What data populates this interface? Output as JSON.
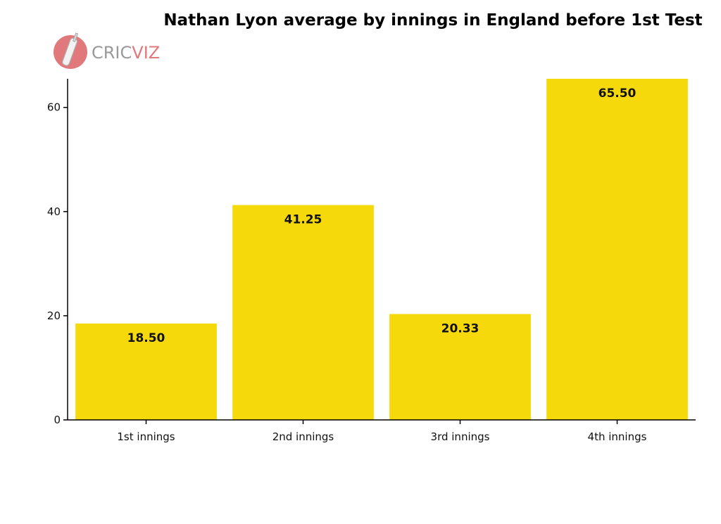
{
  "logo": {
    "text_prefix": "CRIC",
    "text_suffix": "VIZ",
    "color": "#e0787c"
  },
  "colors": {
    "bar": "#f5d90a",
    "axis": "#000000"
  },
  "chart_data": {
    "type": "bar",
    "title": "Nathan Lyon average by innings in England before 1st Test",
    "xlabel": "",
    "ylabel": "",
    "categories": [
      "1st innings",
      "2nd innings",
      "3rd innings",
      "4th innings"
    ],
    "values": [
      18.5,
      41.25,
      20.33,
      65.5
    ],
    "value_labels": [
      "18.50",
      "41.25",
      "20.33",
      "65.50"
    ],
    "yticks": [
      0,
      20,
      40,
      60
    ],
    "ylim": [
      0,
      65.5
    ],
    "grid": false,
    "legend": "none"
  }
}
